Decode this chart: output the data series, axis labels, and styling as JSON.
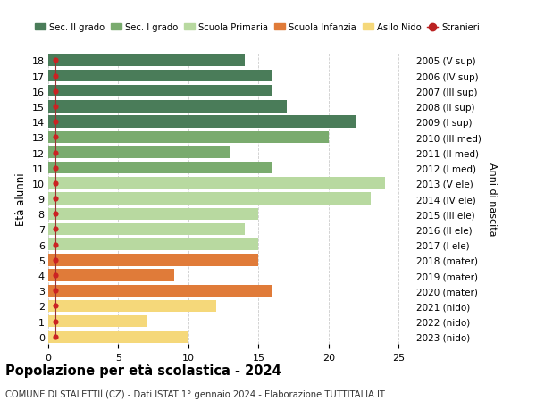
{
  "ages": [
    0,
    1,
    2,
    3,
    4,
    5,
    6,
    7,
    8,
    9,
    10,
    11,
    12,
    13,
    14,
    15,
    16,
    17,
    18
  ],
  "right_labels": [
    "2023 (nido)",
    "2022 (nido)",
    "2021 (nido)",
    "2020 (mater)",
    "2019 (mater)",
    "2018 (mater)",
    "2017 (I ele)",
    "2016 (II ele)",
    "2015 (III ele)",
    "2014 (IV ele)",
    "2013 (V ele)",
    "2012 (I med)",
    "2011 (II med)",
    "2010 (III med)",
    "2009 (I sup)",
    "2008 (II sup)",
    "2007 (III sup)",
    "2006 (IV sup)",
    "2005 (V sup)"
  ],
  "bar_values": [
    10,
    7,
    12,
    16,
    9,
    15,
    15,
    14,
    15,
    23,
    24,
    16,
    13,
    20,
    22,
    17,
    16,
    16,
    14
  ],
  "bar_colors": [
    "#f5d87a",
    "#f5d87a",
    "#f5d87a",
    "#e07b39",
    "#e07b39",
    "#e07b39",
    "#b8d9a0",
    "#b8d9a0",
    "#b8d9a0",
    "#b8d9a0",
    "#b8d9a0",
    "#7aab6e",
    "#7aab6e",
    "#7aab6e",
    "#4a7c59",
    "#4a7c59",
    "#4a7c59",
    "#4a7c59",
    "#4a7c59"
  ],
  "stranieri_x": [
    0.5,
    0.5,
    0.5,
    0.5,
    0.5,
    0.5,
    0.5,
    0.5,
    0.5,
    0.5,
    0.5,
    0.5,
    0.5,
    0.5,
    0.5,
    0.5,
    0.5,
    0.5,
    0.5
  ],
  "title": "Popolazione per età scolastica - 2024",
  "subtitle": "COMUNE DI STALETTIÌ (CZ) - Dati ISTAT 1° gennaio 2024 - Elaborazione TUTTITALIA.IT",
  "ylabel_left": "Età alunni",
  "ylabel_right": "Anni di nascita",
  "legend_items": [
    {
      "label": "Sec. II grado",
      "color": "#4a7c59"
    },
    {
      "label": "Sec. I grado",
      "color": "#7aab6e"
    },
    {
      "label": "Scuola Primaria",
      "color": "#b8d9a0"
    },
    {
      "label": "Scuola Infanzia",
      "color": "#e07b39"
    },
    {
      "label": "Asilo Nido",
      "color": "#f5d87a"
    },
    {
      "label": "Stranieri",
      "color": "#bb2222"
    }
  ],
  "xlim": [
    0,
    26
  ],
  "ylim": [
    -0.5,
    18.5
  ],
  "xticks": [
    0,
    5,
    10,
    15,
    20,
    25
  ],
  "bg_color": "#ffffff",
  "grid_color": "#cccccc",
  "bar_height": 0.78
}
